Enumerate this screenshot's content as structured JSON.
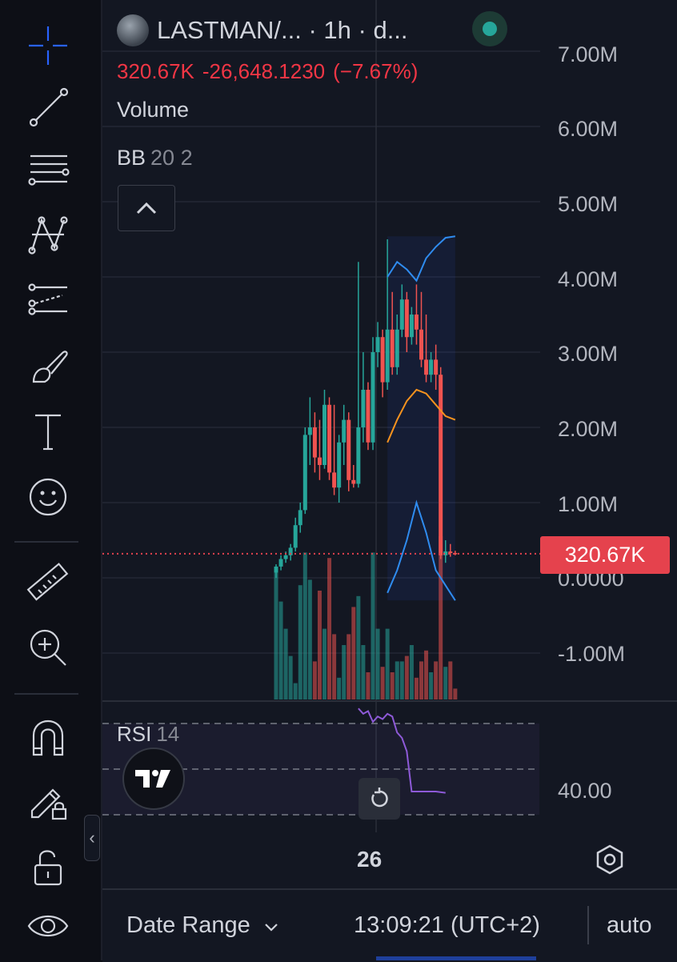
{
  "header": {
    "symbol": "LASTMAN/...",
    "interval": " · 1h · d...",
    "price": "320.67K",
    "change": "-26,648.1230",
    "change_pct": "(−7.67%)"
  },
  "indicators": {
    "volume_label": "Volume",
    "bb_label": "BB",
    "bb_params": "20 2",
    "rsi_label": "RSI",
    "rsi_params": "14"
  },
  "price_axis": {
    "ticks": [
      "7.00M",
      "6.00M",
      "5.00M",
      "4.00M",
      "3.00M",
      "2.00M",
      "1.00M",
      "0.0000",
      "-1.00M"
    ],
    "current_price_tag": "320.67K"
  },
  "rsi_axis": {
    "tick": "40.00"
  },
  "time_axis": {
    "tick": "26"
  },
  "bottom_bar": {
    "date_range": "Date Range",
    "time": "13:09:21 (UTC+2)",
    "scale": "auto"
  },
  "colors": {
    "up": "#26a69a",
    "down": "#ef5350",
    "bb_bands": "#2f8cf0",
    "bb_basis": "#f7931e",
    "rsi_line": "#8e5ad8",
    "price_tag": "#e5424d"
  },
  "icons": [
    "crosshair-icon",
    "trend-line-icon",
    "fib-icon",
    "pattern-icon",
    "projection-icon",
    "brush-icon",
    "text-icon",
    "emoji-icon",
    "ruler-icon",
    "zoom-in-icon",
    "magnet-icon",
    "lock-drawing-icon",
    "unlock-icon",
    "eye-icon",
    "chevron-left-icon",
    "chevron-up-icon",
    "tradingview-logo-icon",
    "reset-icon",
    "settings-icon",
    "chevron-down-icon"
  ],
  "chart_data": {
    "type": "candlestick",
    "candles": [
      {
        "o": 70000,
        "h": 180000,
        "l": 0,
        "c": 150000
      },
      {
        "o": 150000,
        "h": 300000,
        "l": 100000,
        "c": 250000
      },
      {
        "o": 250000,
        "h": 350000,
        "l": 200000,
        "c": 300000
      },
      {
        "o": 300000,
        "h": 450000,
        "l": 230000,
        "c": 400000
      },
      {
        "o": 400000,
        "h": 800000,
        "l": 350000,
        "c": 700000
      },
      {
        "o": 700000,
        "h": 1000000,
        "l": 600000,
        "c": 900000
      },
      {
        "o": 900000,
        "h": 2000000,
        "l": 850000,
        "c": 1900000
      },
      {
        "o": 1900000,
        "h": 2400000,
        "l": 1500000,
        "c": 2000000
      },
      {
        "o": 2000000,
        "h": 2200000,
        "l": 1400000,
        "c": 1600000
      },
      {
        "o": 1600000,
        "h": 2100000,
        "l": 1300000,
        "c": 1500000
      },
      {
        "o": 1500000,
        "h": 2500000,
        "l": 1450000,
        "c": 2300000
      },
      {
        "o": 2300000,
        "h": 2400000,
        "l": 1300000,
        "c": 1400000
      },
      {
        "o": 1400000,
        "h": 2300000,
        "l": 1100000,
        "c": 1200000
      },
      {
        "o": 1200000,
        "h": 1900000,
        "l": 1000000,
        "c": 1800000
      },
      {
        "o": 1800000,
        "h": 2300000,
        "l": 1500000,
        "c": 2100000
      },
      {
        "o": 2100000,
        "h": 2200000,
        "l": 1150000,
        "c": 1300000
      },
      {
        "o": 1300000,
        "h": 1500000,
        "l": 1200000,
        "c": 1250000
      },
      {
        "o": 1250000,
        "h": 4200000,
        "l": 1200000,
        "c": 2000000
      },
      {
        "o": 2000000,
        "h": 3000000,
        "l": 1800000,
        "c": 2500000
      },
      {
        "o": 2500000,
        "h": 2600000,
        "l": 1700000,
        "c": 1800000
      },
      {
        "o": 1800000,
        "h": 3200000,
        "l": 1700000,
        "c": 3000000
      },
      {
        "o": 3000000,
        "h": 3400000,
        "l": 2800000,
        "c": 3200000
      },
      {
        "o": 3200000,
        "h": 3300000,
        "l": 2400000,
        "c": 2600000
      },
      {
        "o": 2600000,
        "h": 4500000,
        "l": 2500000,
        "c": 3300000
      },
      {
        "o": 3300000,
        "h": 3800000,
        "l": 2700000,
        "c": 2800000
      },
      {
        "o": 2800000,
        "h": 3500000,
        "l": 2700000,
        "c": 3300000
      },
      {
        "o": 3300000,
        "h": 3900000,
        "l": 3200000,
        "c": 3700000
      },
      {
        "o": 3700000,
        "h": 3800000,
        "l": 3000000,
        "c": 3200000
      },
      {
        "o": 3200000,
        "h": 3600000,
        "l": 3100000,
        "c": 3500000
      },
      {
        "o": 3500000,
        "h": 3900000,
        "l": 3100000,
        "c": 3300000
      },
      {
        "o": 3300000,
        "h": 3800000,
        "l": 2800000,
        "c": 2900000
      },
      {
        "o": 2900000,
        "h": 3500000,
        "l": 2600000,
        "c": 2700000
      },
      {
        "o": 2700000,
        "h": 3000000,
        "l": 2600000,
        "c": 2900000
      },
      {
        "o": 2900000,
        "h": 3100000,
        "l": 2500000,
        "c": 2700000
      },
      {
        "o": 2700000,
        "h": 2800000,
        "l": 250000,
        "c": 300000
      },
      {
        "o": 300000,
        "h": 500000,
        "l": 200000,
        "c": 350000
      },
      {
        "o": 350000,
        "h": 450000,
        "l": 280000,
        "c": 330000
      },
      {
        "o": 330000,
        "h": 360000,
        "l": 300000,
        "c": 320670
      }
    ],
    "volume_pct": [
      0.48,
      0.36,
      0.26,
      0.16,
      0.06,
      0.42,
      0.54,
      0.44,
      0.14,
      0.4,
      0.26,
      0.52,
      0.24,
      0.08,
      0.2,
      0.24,
      0.34,
      0.38,
      0.2,
      0.1,
      0.54,
      0.26,
      0.12,
      0.26,
      0.1,
      0.14,
      0.14,
      0.16,
      0.2,
      0.08,
      0.14,
      0.18,
      0.1,
      0.14,
      0.6,
      0.12,
      0.14,
      0.04
    ],
    "bb_upper": [
      [
        23,
        4000000
      ],
      [
        25,
        4200000
      ],
      [
        27,
        4100000
      ],
      [
        29,
        3950000
      ],
      [
        31,
        4250000
      ],
      [
        33,
        4400000
      ],
      [
        35,
        4520000
      ],
      [
        37,
        4540000
      ]
    ],
    "bb_basis": [
      [
        23,
        1800000
      ],
      [
        25,
        2100000
      ],
      [
        27,
        2350000
      ],
      [
        29,
        2500000
      ],
      [
        31,
        2450000
      ],
      [
        33,
        2300000
      ],
      [
        35,
        2150000
      ],
      [
        37,
        2100000
      ]
    ],
    "bb_lower": [
      [
        23,
        -200000
      ],
      [
        25,
        100000
      ],
      [
        27,
        500000
      ],
      [
        29,
        1000000
      ],
      [
        31,
        600000
      ],
      [
        33,
        100000
      ],
      [
        35,
        -100000
      ],
      [
        37,
        -300000
      ]
    ],
    "rsi": [
      [
        17,
        71
      ],
      [
        18,
        69
      ],
      [
        19,
        70
      ],
      [
        20,
        66
      ],
      [
        21,
        68
      ],
      [
        22,
        67
      ],
      [
        23,
        69
      ],
      [
        24,
        68
      ],
      [
        25,
        62
      ],
      [
        26,
        60
      ],
      [
        27,
        55
      ],
      [
        28,
        40
      ],
      [
        29,
        40
      ],
      [
        31,
        40
      ],
      [
        33,
        40
      ],
      [
        35,
        39.5
      ]
    ],
    "ylim": [
      -1000000,
      7000000
    ]
  }
}
